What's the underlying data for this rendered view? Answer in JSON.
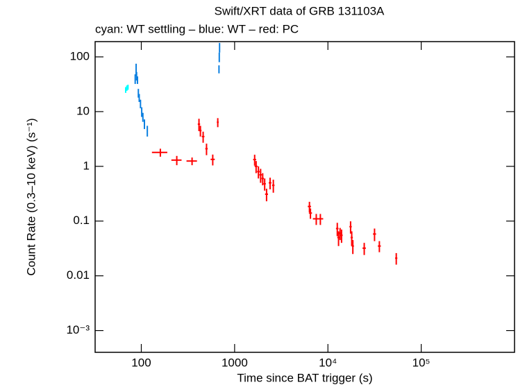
{
  "chart_data": {
    "type": "errorbar-scatter",
    "title": "Swift/XRT data of GRB 131103A",
    "subtitle": "cyan: WT settling – blue: WT – red: PC",
    "x_label": "Time since BAT trigger (s)",
    "y_label": "Count Rate (0.3–10 keV) (s⁻¹)",
    "xscale": "log",
    "yscale": "log",
    "xlim": [
      32,
      1000000
    ],
    "ylim": [
      0.0004,
      190
    ],
    "xticks": [
      100,
      1000,
      {
        "value": 10000,
        "label": "10⁴"
      },
      {
        "value": 100000,
        "label": "10⁵"
      }
    ],
    "yticks": [
      {
        "value": 0.001,
        "label": "10⁻³"
      },
      0.01,
      0.1,
      1,
      10,
      100
    ],
    "series": [
      {
        "name": "WT settling",
        "color": "#00ffff",
        "x": [
          68,
          70,
          72
        ],
        "xerr": [
          1,
          1,
          1
        ],
        "values": [
          25,
          27,
          28
        ],
        "yerr": [
          3,
          3,
          3
        ]
      },
      {
        "name": "WT",
        "color": "#0a7fe0",
        "x": [
          86,
          88,
          89,
          91,
          93,
          95,
          98,
          101,
          104,
          108,
          116,
          680,
          685,
          690
        ],
        "xerr": [
          0.5,
          0.5,
          0.5,
          0.5,
          0.5,
          0.5,
          0.5,
          0.5,
          0.5,
          0.5,
          1,
          2,
          2,
          2
        ],
        "values": [
          40,
          60,
          45,
          38,
          22,
          18,
          14,
          10,
          8,
          6,
          4.5,
          60,
          100,
          150
        ],
        "yerr": [
          8,
          15,
          8,
          6,
          4,
          3,
          2.5,
          2,
          1.5,
          1.2,
          1,
          10,
          20,
          30
        ]
      },
      {
        "name": "PC",
        "color": "#ff0000",
        "x": [
          160,
          240,
          350,
          415,
          430,
          460,
          500,
          583,
          660,
          1640,
          1700,
          1800,
          1900,
          2000,
          2100,
          2200,
          2400,
          2600,
          6340,
          6500,
          7500,
          8300,
          12600,
          13000,
          13500,
          14000,
          17500,
          18000,
          18500,
          24500,
          31600,
          35600,
          54000
        ],
        "xerr": [
          30,
          30,
          45,
          12,
          12,
          15,
          15,
          30,
          15,
          60,
          60,
          60,
          60,
          60,
          60,
          80,
          80,
          80,
          250,
          250,
          600,
          600,
          400,
          400,
          400,
          400,
          500,
          500,
          500,
          1000,
          1200,
          1300,
          1500
        ],
        "values": [
          1.8,
          1.3,
          1.25,
          5.9,
          4.5,
          3.5,
          2.1,
          1.34,
          6.4,
          1.33,
          1.0,
          0.8,
          0.7,
          0.6,
          0.48,
          0.31,
          0.5,
          0.45,
          0.185,
          0.14,
          0.11,
          0.11,
          0.073,
          0.05,
          0.06,
          0.055,
          0.079,
          0.05,
          0.035,
          0.032,
          0.058,
          0.035,
          0.021
        ],
        "yerr": [
          0.3,
          0.25,
          0.2,
          1.5,
          1.0,
          0.8,
          0.5,
          0.3,
          1.2,
          0.3,
          0.25,
          0.2,
          0.2,
          0.15,
          0.12,
          0.08,
          0.12,
          0.12,
          0.04,
          0.03,
          0.025,
          0.025,
          0.02,
          0.015,
          0.015,
          0.015,
          0.02,
          0.015,
          0.01,
          0.008,
          0.015,
          0.008,
          0.005
        ]
      }
    ]
  }
}
